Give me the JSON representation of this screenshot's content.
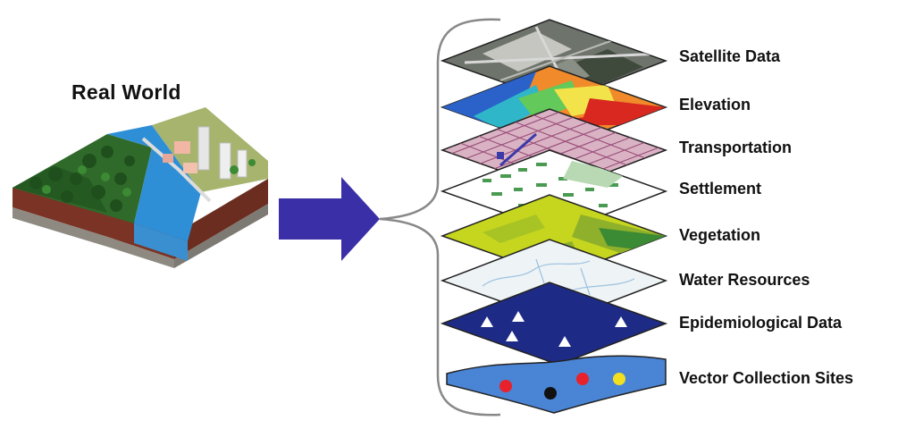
{
  "title": "Real World",
  "layers": [
    {
      "label": "Satellite Data",
      "kind": "satellite",
      "colors": [
        "#5b6258",
        "#8a8f86",
        "#c4c6bf",
        "#3f4a3d"
      ]
    },
    {
      "label": "Elevation",
      "kind": "elevation",
      "colors": [
        "#2a62c9",
        "#2fb7c9",
        "#63c95a",
        "#f2e34a",
        "#f08a2a",
        "#d8281f"
      ]
    },
    {
      "label": "Transportation",
      "kind": "transport",
      "colors": [
        "#d9b3c4",
        "#9b4f7a",
        "#3a3aa8"
      ]
    },
    {
      "label": "Settlement",
      "kind": "settlement",
      "colors": [
        "#ffffff",
        "#4a9a52",
        "#b8d9b4"
      ]
    },
    {
      "label": "Vegetation",
      "kind": "vegetation",
      "colors": [
        "#c6d61f",
        "#8fb02a",
        "#3b8a34"
      ]
    },
    {
      "label": "Water Resources",
      "kind": "water",
      "colors": [
        "#eef3f6",
        "#9cc1df"
      ]
    },
    {
      "label": "Epidemiological Data",
      "kind": "epidemiological",
      "colors": [
        "#1d2b86",
        "#ffffff"
      ]
    },
    {
      "label": "Vector Collection Sites",
      "kind": "vector",
      "colors": [
        "#4a84d4",
        "#e8222a",
        "#111111",
        "#f2e020"
      ]
    }
  ],
  "arrow_color": "#3b2fa8"
}
